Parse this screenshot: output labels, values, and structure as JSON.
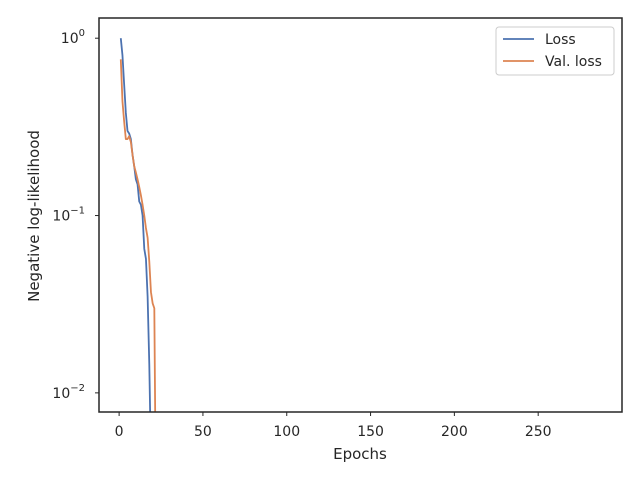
{
  "chart_data": {
    "type": "line",
    "title": "",
    "xlabel": "Epochs",
    "ylabel": "Negative log-likelihood",
    "xlim": [
      -12,
      300
    ],
    "ylim": [
      0.0078,
      1.3
    ],
    "yscale": "log",
    "grid": false,
    "legend_position": "top-right",
    "x_ticks": [
      0,
      50,
      100,
      150,
      200,
      250
    ],
    "x_tick_labels": [
      "0",
      "50",
      "100",
      "150",
      "200",
      "250"
    ],
    "y_ticks": [
      1,
      0.1,
      0.01
    ],
    "y_tick_labels": [
      {
        "base": "10",
        "exp": "0"
      },
      {
        "base": "10",
        "exp": "−1"
      },
      {
        "base": "10",
        "exp": "−2"
      }
    ],
    "series": [
      {
        "name": "Loss",
        "color": "#4c72b0",
        "x": [
          1,
          2,
          3,
          4,
          5,
          6,
          7,
          8,
          9,
          10,
          11,
          12,
          13,
          14,
          15,
          16,
          17,
          18,
          18.5
        ],
        "y": [
          1.0,
          0.8,
          0.55,
          0.38,
          0.3,
          0.29,
          0.27,
          0.22,
          0.19,
          0.16,
          0.15,
          0.12,
          0.115,
          0.1,
          0.065,
          0.057,
          0.035,
          0.0145,
          0.0078
        ]
      },
      {
        "name": "Val. loss",
        "color": "#dd8452",
        "x": [
          1,
          2,
          3,
          4,
          5,
          6,
          7,
          8,
          9,
          10,
          11,
          12,
          13,
          14,
          15,
          16,
          17,
          18,
          19,
          20,
          21,
          21.5
        ],
        "y": [
          0.76,
          0.44,
          0.34,
          0.27,
          0.27,
          0.28,
          0.26,
          0.22,
          0.19,
          0.175,
          0.16,
          0.145,
          0.13,
          0.115,
          0.1,
          0.085,
          0.075,
          0.055,
          0.037,
          0.032,
          0.03,
          0.0078
        ]
      }
    ]
  }
}
